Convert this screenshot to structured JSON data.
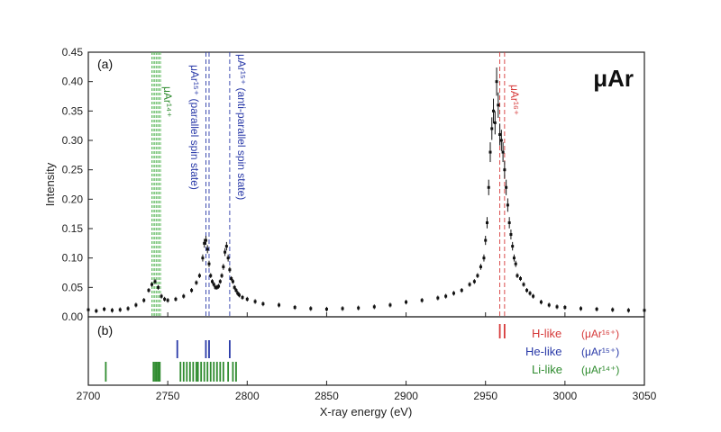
{
  "chart_data": {
    "type": "scatter",
    "title": "μAr",
    "xlabel": "X-ray energy (eV)",
    "ylabel": "Intensity",
    "xlim": [
      2700,
      3050
    ],
    "ylim": [
      0,
      0.45
    ],
    "x_ticks": [
      "2700",
      "2750",
      "2800",
      "2850",
      "2900",
      "2950",
      "3000",
      "3050"
    ],
    "y_ticks": [
      "0.00",
      "0.05",
      "0.10",
      "0.15",
      "0.20",
      "0.25",
      "0.30",
      "0.35",
      "0.40",
      "0.45"
    ],
    "grid": false,
    "panel_a_label": "(a)",
    "panel_b_label": "(b)",
    "colors": {
      "data": "#111111",
      "h_like": "#d63a3a",
      "he_like": "#2a3aa8",
      "li_like": "#2e8b2e",
      "li_band": "#5cb85c"
    },
    "series": [
      {
        "x": [
          2700,
          2705,
          2710,
          2715,
          2720,
          2725,
          2730,
          2735,
          2738,
          2740,
          2742,
          2744,
          2746,
          2748,
          2750,
          2755,
          2760,
          2765,
          2768,
          2770,
          2772,
          2773,
          2774,
          2775,
          2776,
          2777,
          2778,
          2779,
          2780,
          2781,
          2782,
          2783,
          2784,
          2785,
          2786,
          2787,
          2788,
          2789,
          2790,
          2791,
          2792,
          2793,
          2794,
          2795,
          2797,
          2800,
          2805,
          2810,
          2820,
          2830,
          2840,
          2850,
          2860,
          2870,
          2880,
          2890,
          2900,
          2910,
          2920,
          2925,
          2930,
          2935,
          2940,
          2943,
          2945,
          2947,
          2949,
          2950,
          2951,
          2952,
          2953,
          2954,
          2955,
          2956,
          2957,
          2958,
          2959,
          2960,
          2961,
          2962,
          2963,
          2964,
          2965,
          2966,
          2967,
          2968,
          2969,
          2970,
          2972,
          2974,
          2976,
          2978,
          2980,
          2985,
          2990,
          2995,
          3000,
          3010,
          3020,
          3030,
          3040,
          3050
        ],
        "y": [
          0.012,
          0.01,
          0.013,
          0.011,
          0.012,
          0.014,
          0.02,
          0.028,
          0.045,
          0.055,
          0.06,
          0.05,
          0.035,
          0.03,
          0.028,
          0.03,
          0.035,
          0.045,
          0.058,
          0.07,
          0.1,
          0.125,
          0.13,
          0.115,
          0.09,
          0.07,
          0.06,
          0.055,
          0.05,
          0.05,
          0.052,
          0.06,
          0.07,
          0.085,
          0.11,
          0.12,
          0.1,
          0.08,
          0.065,
          0.06,
          0.05,
          0.045,
          0.04,
          0.037,
          0.033,
          0.03,
          0.026,
          0.022,
          0.02,
          0.016,
          0.014,
          0.013,
          0.014,
          0.015,
          0.017,
          0.02,
          0.025,
          0.028,
          0.032,
          0.035,
          0.04,
          0.045,
          0.055,
          0.06,
          0.07,
          0.085,
          0.1,
          0.13,
          0.16,
          0.22,
          0.28,
          0.32,
          0.35,
          0.33,
          0.4,
          0.36,
          0.31,
          0.3,
          0.28,
          0.25,
          0.22,
          0.19,
          0.16,
          0.14,
          0.12,
          0.1,
          0.09,
          0.07,
          0.065,
          0.055,
          0.045,
          0.04,
          0.035,
          0.025,
          0.02,
          0.017,
          0.016,
          0.014,
          0.013,
          0.012,
          0.011,
          0.011
        ]
      }
    ],
    "annotations": {
      "mu_ar_14": "μAr¹⁴⁺",
      "mu_ar_15_parallel": "μAr¹⁵⁺ (parallel spin state)",
      "mu_ar_15_antiparallel": "μAr¹⁵⁺ (anti-parallel spin state)",
      "mu_ar_16": "μAr¹⁶⁺"
    },
    "transitions": {
      "h_like": [
        2959,
        2962
      ],
      "he_like": [
        2756,
        2774,
        2776,
        2789
      ],
      "li_like": [
        2711,
        2741,
        2742,
        2743,
        2744,
        2745,
        2758,
        2760,
        2762,
        2764,
        2766,
        2768,
        2769,
        2771,
        2773,
        2775,
        2777,
        2779,
        2781,
        2783,
        2785,
        2788,
        2791,
        2793
      ]
    },
    "legend": [
      {
        "label": "H-like",
        "ion": "(μAr¹⁶⁺)",
        "color": "#d63a3a"
      },
      {
        "label": "He-like",
        "ion": "(μAr¹⁵⁺)",
        "color": "#2a3aa8"
      },
      {
        "label": "Li-like",
        "ion": "(μAr¹⁴⁺)",
        "color": "#2e8b2e"
      }
    ]
  }
}
